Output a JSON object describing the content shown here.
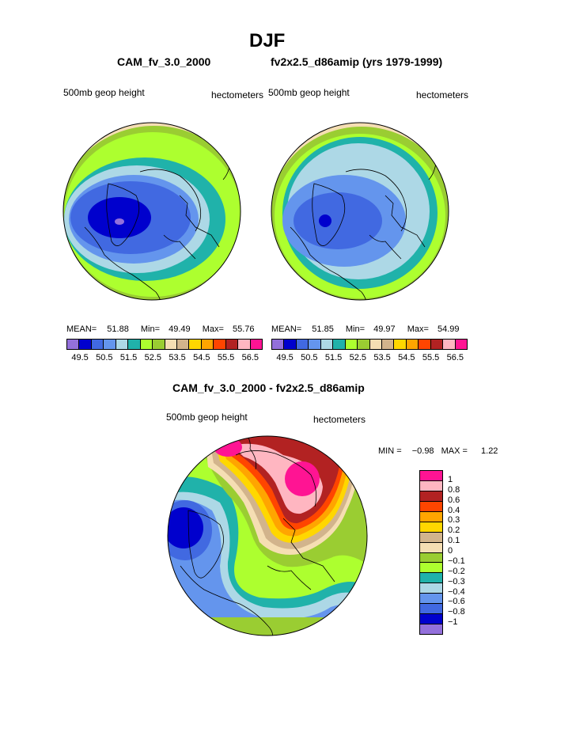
{
  "title": "DJF",
  "colors": {
    "levels11": [
      "#9370db",
      "#0000cd",
      "#4169e1",
      "#6495ed",
      "#add8e6",
      "#20b2aa",
      "#adff2f",
      "#9acd32",
      "#f5deb3",
      "#d2b48c",
      "#ffd700",
      "#ffa500",
      "#ff4500",
      "#b22222",
      "#ffb6c1",
      "#ff1493"
    ],
    "diff": [
      "#ff1493",
      "#ffb6c1",
      "#b22222",
      "#ff4500",
      "#ffa500",
      "#ffd700",
      "#d2b48c",
      "#f5deb3",
      "#9acd32",
      "#adff2f",
      "#20b2aa",
      "#add8e6",
      "#6495ed",
      "#4169e1",
      "#0000cd",
      "#9370db"
    ]
  },
  "panels": {
    "left": {
      "title": "CAM_fv_3.0_2000",
      "field": "500mb geop height",
      "units": "hectometers",
      "mean_label": "MEAN=",
      "mean": "51.88",
      "min_label": "Min=",
      "min": "49.49",
      "max_label": "Max=",
      "max": "55.76"
    },
    "right": {
      "title": "fv2x2.5_d86amip (yrs 1979-1999)",
      "field": "500mb geop height",
      "units": "hectometers",
      "mean_label": "MEAN=",
      "mean": "51.85",
      "min_label": "Min=",
      "min": "49.97",
      "max_label": "Max=",
      "max": "54.99"
    },
    "diff": {
      "title": "CAM_fv_3.0_2000 - fv2x2.5_d86amip",
      "field": "500mb geop height",
      "units": "hectometers",
      "min_label": "MIN =",
      "min": "−0.98",
      "max_label": "MAX =",
      "max": "1.22"
    }
  },
  "chart_data": [
    {
      "type": "heatmap",
      "title": "CAM_fv_3.0_2000",
      "subtitle": "500mb geop height",
      "units": "hectometers",
      "projection": "north polar stereographic",
      "contour_levels": [
        49.5,
        50.5,
        51.5,
        52.5,
        53.5,
        54.5,
        55.5,
        56.5
      ],
      "colorbar_labels": [
        "49.5",
        "50.5",
        "51.5",
        "52.5",
        "53.5",
        "54.5",
        "55.5",
        "56.5"
      ],
      "stats": {
        "mean": 51.88,
        "min": 49.49,
        "max": 55.76
      }
    },
    {
      "type": "heatmap",
      "title": "fv2x2.5_d86amip (yrs 1979-1999)",
      "subtitle": "500mb geop height",
      "units": "hectometers",
      "projection": "north polar stereographic",
      "contour_levels": [
        49.5,
        50.5,
        51.5,
        52.5,
        53.5,
        54.5,
        55.5,
        56.5
      ],
      "colorbar_labels": [
        "49.5",
        "50.5",
        "51.5",
        "52.5",
        "53.5",
        "54.5",
        "55.5",
        "56.5"
      ],
      "stats": {
        "mean": 51.85,
        "min": 49.97,
        "max": 54.99
      }
    },
    {
      "type": "heatmap",
      "title": "CAM_fv_3.0_2000 - fv2x2.5_d86amip",
      "subtitle": "500mb geop height",
      "units": "hectometers",
      "projection": "north polar stereographic",
      "contour_levels": [
        1,
        0.8,
        0.6,
        0.4,
        0.3,
        0.2,
        0.1,
        0,
        -0.1,
        -0.2,
        -0.3,
        -0.4,
        -0.6,
        -0.8,
        -1
      ],
      "colorbar_labels": [
        "1",
        "0.8",
        "0.6",
        "0.4",
        "0.3",
        "0.2",
        "0.1",
        "0",
        "−0.1",
        "−0.2",
        "−0.3",
        "−0.4",
        "−0.6",
        "−0.8",
        "−1"
      ],
      "stats": {
        "min": -0.98,
        "max": 1.22
      }
    }
  ]
}
